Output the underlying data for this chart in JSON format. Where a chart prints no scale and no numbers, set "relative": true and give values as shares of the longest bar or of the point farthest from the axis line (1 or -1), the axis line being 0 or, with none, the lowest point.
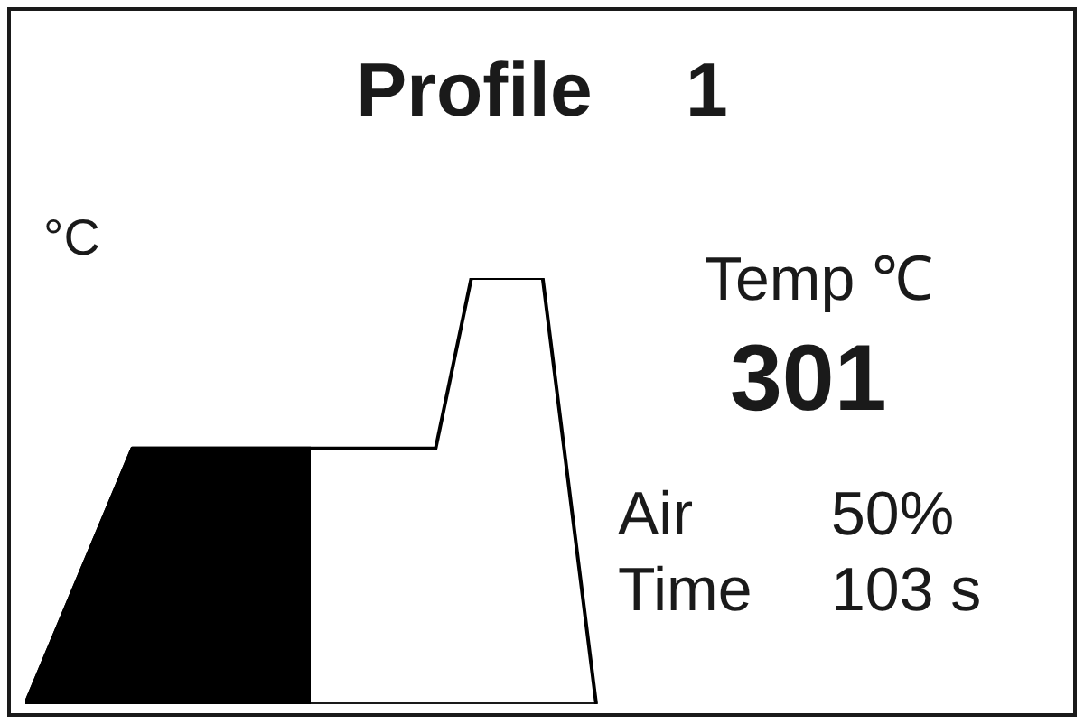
{
  "chart_data": {
    "type": "area",
    "title": "Profile 1",
    "ylabel": "°C",
    "relative": true,
    "categories": [
      null,
      null,
      null,
      null,
      null,
      null,
      null,
      null,
      null,
      null,
      null,
      null,
      null,
      null,
      null,
      null,
      null,
      null,
      null,
      null,
      null,
      null,
      null,
      null,
      null,
      null,
      null,
      null,
      null,
      null,
      null,
      null,
      null
    ],
    "series": [
      {
        "type": "area",
        "color": "#000000",
        "values": [
          0,
          null,
          null,
          null,
          null,
          null,
          0.6,
          null,
          null,
          null,
          null,
          null,
          null,
          null,
          null,
          null,
          0.6,
          null,
          null,
          null,
          null,
          null,
          null,
          null,
          null,
          null,
          null,
          null,
          null,
          null,
          null,
          null,
          null
        ]
      },
      {
        "type": "line",
        "color": "#000000",
        "values": [
          0,
          null,
          null,
          null,
          null,
          null,
          0.6,
          null,
          null,
          null,
          null,
          null,
          null,
          null,
          null,
          null,
          null,
          null,
          null,
          null,
          null,
          null,
          null,
          0.6,
          null,
          1,
          null,
          null,
          null,
          1,
          null,
          null,
          0
        ]
      }
    ],
    "annotations": [
      "Temp ℃",
      "301",
      "Air",
      "50%",
      "Time",
      "103 s"
    ],
    "grid": false,
    "legend": false
  }
}
